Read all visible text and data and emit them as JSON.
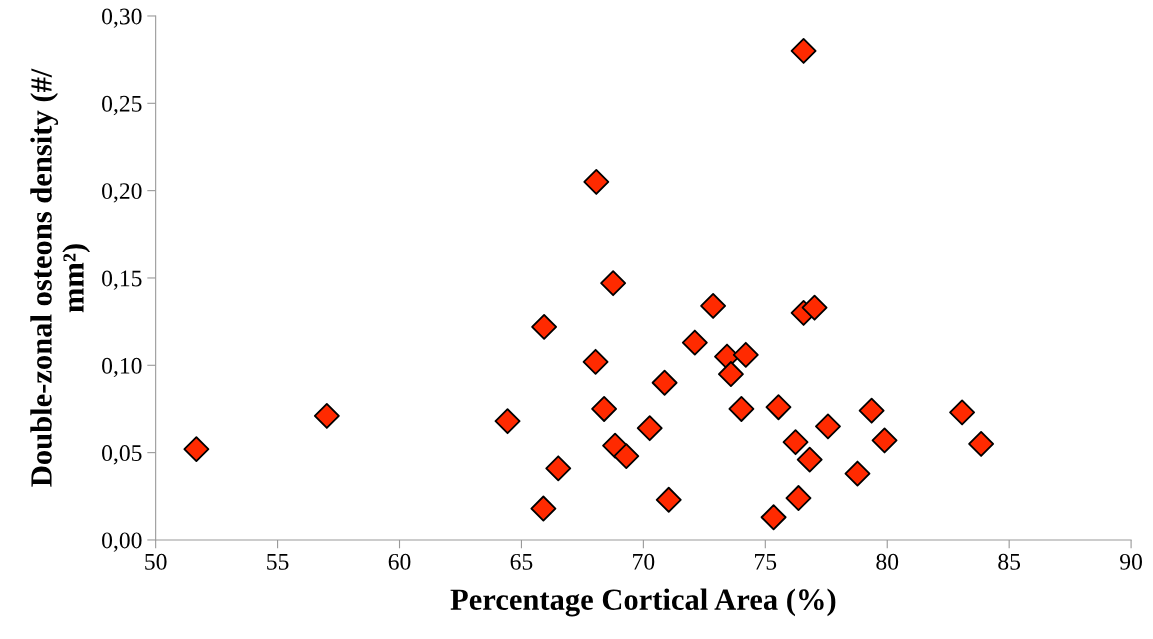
{
  "chart_data": {
    "type": "scatter",
    "xlabel": "Percentage Cortical Area (%)",
    "ylabel": "Double-zonal osteons density (#/\nmm²)",
    "x": [
      51.67,
      57.02,
      64.43,
      65.93,
      65.9,
      66.51,
      68.07,
      68.04,
      68.76,
      68.39,
      68.84,
      69.3,
      76.57,
      70.26,
      70.87,
      71.04,
      72.11,
      72.86,
      73.43,
      73.59,
      74.2,
      74.02,
      75.34,
      75.54,
      76.24,
      76.36,
      76.57,
      77.02,
      76.82,
      77.57,
      78.78,
      79.36,
      79.89,
      83.07,
      83.85
    ],
    "values": [
      0.052,
      0.071,
      0.068,
      0.122,
      0.018,
      0.041,
      0.205,
      0.102,
      0.147,
      0.075,
      0.054,
      0.048,
      0.28,
      0.064,
      0.09,
      0.023,
      0.113,
      0.134,
      0.105,
      0.095,
      0.106,
      0.075,
      0.013,
      0.076,
      0.056,
      0.024,
      0.13,
      0.133,
      0.046,
      0.065,
      0.038,
      0.074,
      0.057,
      0.073,
      0.055
    ],
    "color": "#ff2a00",
    "marker": "diamond",
    "grid": false,
    "xlim": [
      50,
      90
    ],
    "xticks": [
      50,
      55,
      60,
      65,
      70,
      75,
      80,
      85,
      90
    ],
    "ylim": [
      0,
      0.3
    ],
    "yticks": [
      {
        "value": 0,
        "label": "0,00"
      },
      {
        "value": 0.05,
        "label": "0,05"
      },
      {
        "value": 0.1,
        "label": "0,10"
      },
      {
        "value": 0.15,
        "label": "0,15"
      },
      {
        "value": 0.2,
        "label": "0,20"
      },
      {
        "value": 0.25,
        "label": "0,25"
      },
      {
        "value": 0.3,
        "label": "0,30"
      }
    ]
  }
}
